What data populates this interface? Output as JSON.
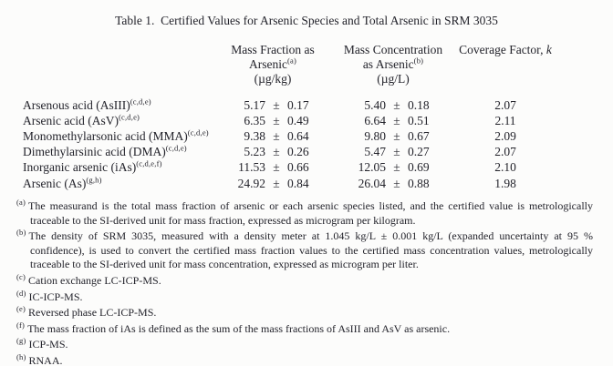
{
  "title": "Table 1.  Certified Values for Arsenic Species and Total Arsenic in SRM 3035",
  "table": {
    "pm_symbol": "±",
    "headers": {
      "mass_fraction": {
        "line1": "Mass Fraction as",
        "line2": "Arsenic",
        "sup": "(a)",
        "unit": "(µg/kg)"
      },
      "mass_concentration": {
        "line1": "Mass Concentration",
        "line2": "as Arsenic",
        "sup": "(b)",
        "unit": "(µg/L)"
      },
      "coverage": {
        "label": "Coverage Factor, ",
        "symbol": "k"
      }
    },
    "rows": [
      {
        "label": "Arsenous acid (AsIII)",
        "sup": "(c,d,e)",
        "mf": "5.17",
        "mf_u": "0.17",
        "mc": "5.40",
        "mc_u": "0.18",
        "k": "2.07"
      },
      {
        "label": "Arsenic acid (AsV)",
        "sup": "(c,d,e)",
        "mf": "6.35",
        "mf_u": "0.49",
        "mc": "6.64",
        "mc_u": "0.51",
        "k": "2.11"
      },
      {
        "label": "Monomethylarsonic acid (MMA)",
        "sup": "(c,d,e)",
        "mf": "9.38",
        "mf_u": "0.64",
        "mc": "9.80",
        "mc_u": "0.67",
        "k": "2.09"
      },
      {
        "label": "Dimethylarsinic acid (DMA)",
        "sup": "(c,d,e)",
        "mf": "5.23",
        "mf_u": "0.26",
        "mc": "5.47",
        "mc_u": "0.27",
        "k": "2.07"
      },
      {
        "label": "Inorganic arsenic (iAs)",
        "sup": "(c,d,e,f)",
        "mf": "11.53",
        "mf_u": "0.66",
        "mc": "12.05",
        "mc_u": "0.69",
        "k": "2.10"
      },
      {
        "label": "Arsenic (As)",
        "sup": "(g,h)",
        "mf": "24.92",
        "mf_u": "0.84",
        "mc": "26.04",
        "mc_u": "0.88",
        "k": "1.98"
      }
    ]
  },
  "footnotes": [
    {
      "marker": "(a)",
      "text": "The measurand is the total mass fraction of arsenic or each arsenic species listed, and the certified value is metrologically traceable to the SI-derived unit for mass fraction, expressed as microgram per kilogram."
    },
    {
      "marker": "(b)",
      "text": "The density of SRM 3035, measured with a density meter at 1.045 kg/L ± 0.001 kg/L (expanded uncertainty at 95 % confidence), is used to convert the certified mass fraction values to the certified mass concentration values, metrologically traceable to the SI-derived unit for mass concentration, expressed as microgram per liter."
    },
    {
      "marker": "(c)",
      "text": "Cation exchange LC-ICP-MS."
    },
    {
      "marker": "(d)",
      "text": "IC-ICP-MS."
    },
    {
      "marker": "(e)",
      "text": "Reversed phase LC-ICP-MS."
    },
    {
      "marker": "(f)",
      "text": "The mass fraction of iAs is defined as the sum of the mass fractions of AsIII and AsV as arsenic."
    },
    {
      "marker": "(g)",
      "text": "ICP-MS."
    },
    {
      "marker": "(h)",
      "text": "RNAA."
    }
  ]
}
